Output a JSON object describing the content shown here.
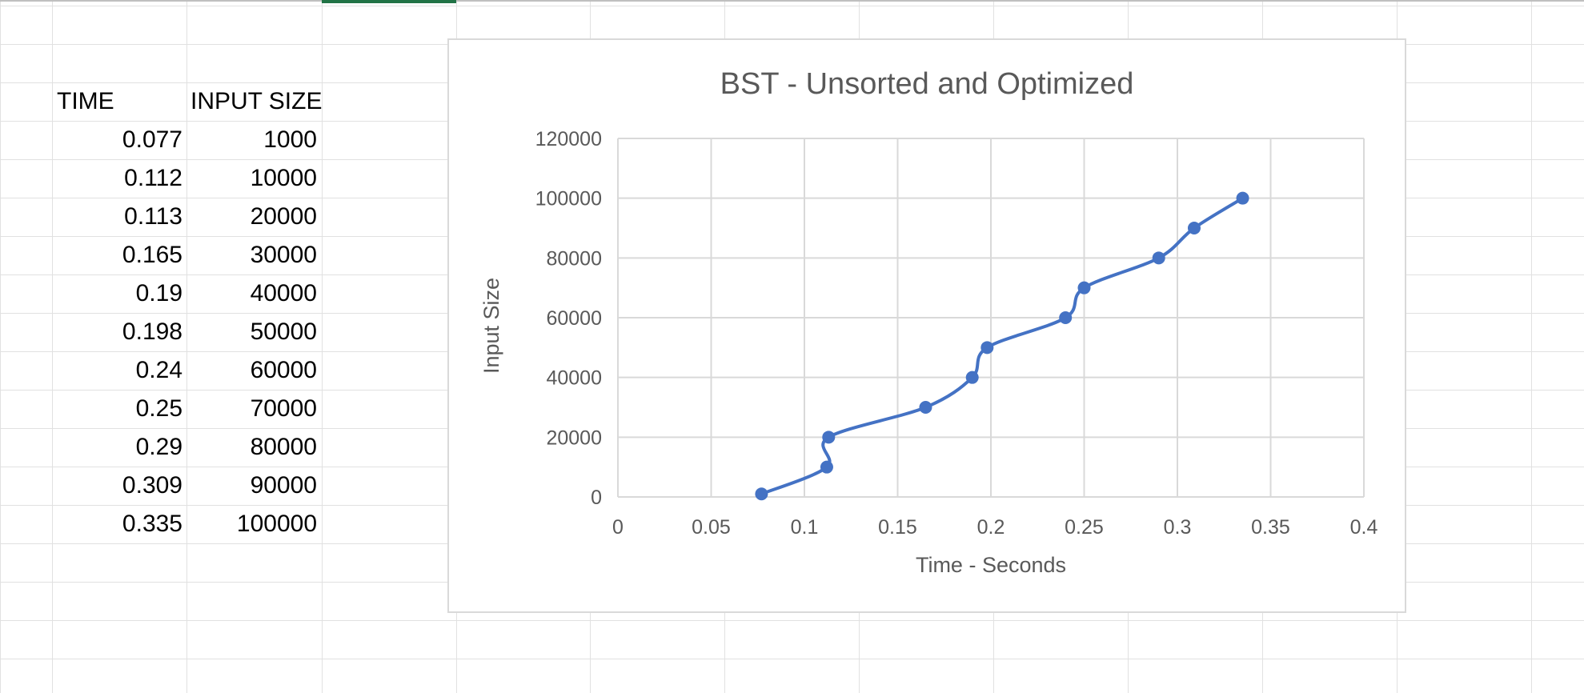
{
  "sheet": {
    "headers": {
      "time": "TIME",
      "input_size": "INPUT SIZE"
    },
    "rows": [
      {
        "time": "0.077",
        "input_size": "1000"
      },
      {
        "time": "0.112",
        "input_size": "10000"
      },
      {
        "time": "0.113",
        "input_size": "20000"
      },
      {
        "time": "0.165",
        "input_size": "30000"
      },
      {
        "time": "0.19",
        "input_size": "40000"
      },
      {
        "time": "0.198",
        "input_size": "50000"
      },
      {
        "time": "0.24",
        "input_size": "60000"
      },
      {
        "time": "0.25",
        "input_size": "70000"
      },
      {
        "time": "0.29",
        "input_size": "80000"
      },
      {
        "time": "0.309",
        "input_size": "90000"
      },
      {
        "time": "0.335",
        "input_size": "100000"
      }
    ],
    "colors": {
      "gridline": "#e1e1e1",
      "selected_cell_marker": "#217346"
    }
  },
  "chart_data": {
    "type": "scatter",
    "style": "smooth-lines-with-markers",
    "title": "BST - Unsorted and Optimized",
    "xlabel": "Time - Seconds",
    "ylabel": "Input Size",
    "xlim": [
      0,
      0.4
    ],
    "ylim": [
      0,
      120000
    ],
    "x_ticks": [
      0,
      0.05,
      0.1,
      0.15,
      0.2,
      0.25,
      0.3,
      0.35,
      0.4
    ],
    "x_tick_labels": [
      "0",
      "0.05",
      "0.1",
      "0.15",
      "0.2",
      "0.25",
      "0.3",
      "0.35",
      "0.4"
    ],
    "y_ticks": [
      0,
      20000,
      40000,
      60000,
      80000,
      100000,
      120000
    ],
    "y_tick_labels": [
      "0",
      "20000",
      "40000",
      "60000",
      "80000",
      "100000",
      "120000"
    ],
    "grid": true,
    "legend": "none",
    "series": [
      {
        "color": "#4472c4",
        "x": [
          0.077,
          0.112,
          0.113,
          0.165,
          0.19,
          0.198,
          0.24,
          0.25,
          0.29,
          0.309,
          0.335
        ],
        "y": [
          1000,
          10000,
          20000,
          30000,
          40000,
          50000,
          60000,
          70000,
          80000,
          90000,
          100000
        ]
      }
    ],
    "colors": {
      "grid": "#d9d9d9",
      "axis_text": "#595959",
      "title_text": "#595959"
    }
  }
}
